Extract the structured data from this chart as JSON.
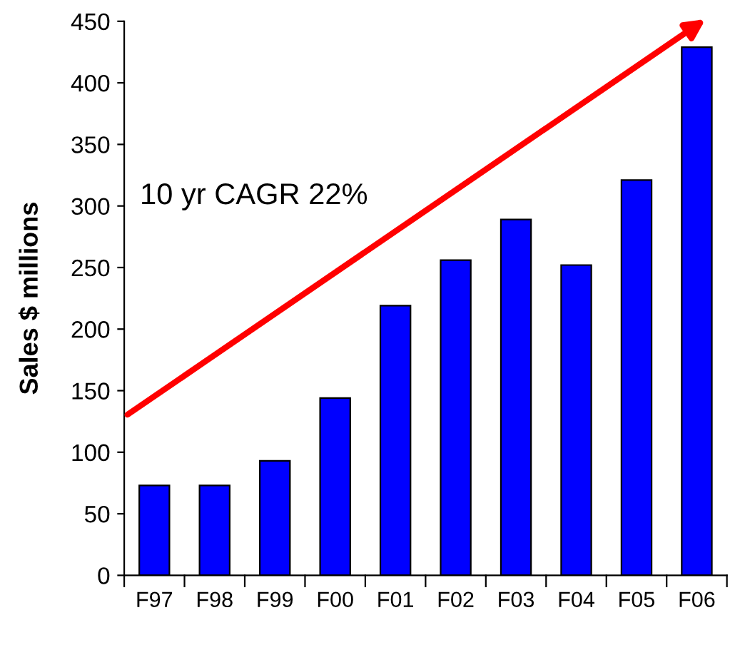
{
  "chart_data": {
    "type": "bar",
    "ylabel": "Sales $ millions",
    "categories": [
      "F97",
      "F98",
      "F99",
      "F00",
      "F01",
      "F02",
      "F03",
      "F04",
      "F05",
      "F06"
    ],
    "values": [
      73,
      73,
      93,
      144,
      219,
      256,
      289,
      252,
      321,
      429
    ],
    "color": "#0000ff",
    "ylim": [
      0,
      450
    ],
    "yticks": [
      0,
      50,
      100,
      150,
      200,
      250,
      300,
      350,
      400,
      450
    ],
    "grid": false,
    "legend": false,
    "annotations": [
      "10 yr CAGR 22%"
    ]
  }
}
